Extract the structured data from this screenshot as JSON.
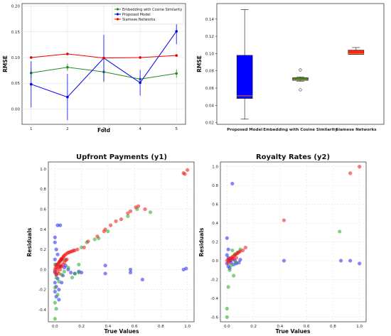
{
  "chart_data": [
    {
      "type": "line",
      "title": "",
      "xlabel": "Fold",
      "ylabel": "RMSE",
      "x": [
        1,
        2,
        3,
        4,
        5
      ],
      "xticks": [
        "1",
        "2",
        "3",
        "4",
        "5"
      ],
      "ylim": [
        -0.03,
        0.205
      ],
      "yticks": [
        "0.00",
        "0.05",
        "0.10",
        "0.15",
        "0.20"
      ],
      "grid": true,
      "legend_position": "top-right",
      "series": [
        {
          "name": "Embedding with Cosine Similarity",
          "color": "#228B22",
          "values": [
            0.07,
            0.081,
            0.072,
            0.058,
            0.069
          ],
          "err": [
            0.01,
            0.007,
            0.02,
            0.005,
            0.008
          ]
        },
        {
          "name": "Proposed Model",
          "color": "#0000ee",
          "values": [
            0.048,
            0.023,
            0.099,
            0.051,
            0.151
          ],
          "err": [
            0.045,
            0.045,
            0.045,
            0.025,
            0.025
          ]
        },
        {
          "name": "Siamese Networks",
          "color": "#ee0000",
          "values": [
            0.1,
            0.107,
            0.099,
            0.1,
            0.104
          ],
          "err": [
            0,
            0,
            0,
            0,
            0
          ]
        }
      ]
    },
    {
      "type": "box",
      "title": "",
      "xlabel": "",
      "ylabel": "RMSE",
      "categories": [
        "Proposed Model",
        "Embedding with Cosine Similarity",
        "Siamese Networks"
      ],
      "ylim": [
        0.018,
        0.158
      ],
      "yticks": [
        "0.02",
        "0.04",
        "0.06",
        "0.08",
        "0.10",
        "0.12",
        "0.14"
      ],
      "grid": false,
      "boxes": [
        {
          "name": "Proposed Model",
          "color": "#0000ff",
          "min": 0.024,
          "q1": 0.048,
          "median": 0.051,
          "q3": 0.098,
          "max": 0.151,
          "outliers": []
        },
        {
          "name": "Embedding with Cosine Similarity",
          "color": "#228B22",
          "min": 0.068,
          "q1": 0.069,
          "median": 0.07,
          "q3": 0.072,
          "max": 0.073,
          "outliers": [
            0.058,
            0.081
          ]
        },
        {
          "name": "Siamese Networks",
          "color": "#ff2020",
          "min": 0.099,
          "q1": 0.099,
          "median": 0.1,
          "q3": 0.104,
          "max": 0.107,
          "outliers": []
        }
      ]
    },
    {
      "type": "scatter",
      "title": "Upfront Payments (y1)",
      "xlabel": "True Values",
      "ylabel": "Residuals",
      "xlim": [
        -0.05,
        1.05
      ],
      "ylim": [
        -0.52,
        1.07
      ],
      "xticks": [
        "0.0",
        "0.2",
        "0.4",
        "0.6",
        "0.8",
        "1.0"
      ],
      "yticks": [
        "-0.4",
        "-0.2",
        "0.0",
        "0.2",
        "0.4",
        "0.6",
        "0.8",
        "1.0"
      ],
      "grid": true,
      "series": [
        {
          "name": "",
          "color": "#2222ee",
          "points": [
            [
              0.02,
              0.44
            ],
            [
              0.04,
              0.44
            ],
            [
              0.0,
              0.32
            ],
            [
              0.0,
              0.27
            ],
            [
              0.01,
              0.2
            ],
            [
              0.02,
              0.15
            ],
            [
              0.0,
              0.1
            ],
            [
              0.01,
              0.05
            ],
            [
              0.0,
              -0.02
            ],
            [
              0.01,
              -0.05
            ],
            [
              0.02,
              -0.09
            ],
            [
              0.0,
              -0.13
            ],
            [
              0.01,
              -0.17
            ],
            [
              0.0,
              -0.22
            ],
            [
              0.01,
              -0.27
            ],
            [
              0.03,
              -0.2
            ],
            [
              0.05,
              -0.13
            ],
            [
              0.06,
              -0.06
            ],
            [
              0.04,
              0.03
            ],
            [
              0.07,
              0.02
            ],
            [
              0.1,
              0.0
            ],
            [
              0.12,
              -0.03
            ],
            [
              0.15,
              -0.04
            ],
            [
              0.18,
              -0.02
            ],
            [
              0.2,
              -0.03
            ],
            [
              0.38,
              0.04
            ],
            [
              0.38,
              -0.04
            ],
            [
              0.57,
              0.0
            ],
            [
              0.57,
              -0.03
            ],
            [
              0.66,
              -0.1
            ],
            [
              0.97,
              0.0
            ],
            [
              0.99,
              0.01
            ],
            [
              0.05,
              0.1
            ],
            [
              0.08,
              0.04
            ],
            [
              0.03,
              -0.3
            ]
          ]
        },
        {
          "name": "",
          "color": "#22aa22",
          "points": [
            [
              0.0,
              -0.49
            ],
            [
              0.01,
              -0.39
            ],
            [
              0.0,
              -0.33
            ],
            [
              0.02,
              -0.25
            ],
            [
              0.0,
              -0.18
            ],
            [
              0.03,
              -0.12
            ],
            [
              0.01,
              -0.08
            ],
            [
              0.05,
              -0.05
            ],
            [
              0.07,
              -0.02
            ],
            [
              0.1,
              0.02
            ],
            [
              0.13,
              -0.08
            ],
            [
              0.15,
              -0.04
            ],
            [
              0.18,
              -0.03
            ],
            [
              0.18,
              0.05
            ],
            [
              0.2,
              0.22
            ],
            [
              0.24,
              0.27
            ],
            [
              0.3,
              0.3
            ],
            [
              0.33,
              0.31
            ],
            [
              0.4,
              0.38
            ],
            [
              0.55,
              0.53
            ],
            [
              0.62,
              0.6
            ],
            [
              0.72,
              0.57
            ],
            [
              0.0,
              0.05
            ],
            [
              0.04,
              0.08
            ],
            [
              0.08,
              0.1
            ]
          ]
        },
        {
          "name": "",
          "color": "#ee1111",
          "points": [
            [
              0.0,
              0.0
            ],
            [
              0.005,
              0.02
            ],
            [
              0.01,
              0.04
            ],
            [
              0.015,
              0.01
            ],
            [
              0.02,
              0.05
            ],
            [
              0.025,
              0.06
            ],
            [
              0.03,
              0.07
            ],
            [
              0.035,
              0.08
            ],
            [
              0.04,
              0.09
            ],
            [
              0.045,
              0.1
            ],
            [
              0.05,
              0.11
            ],
            [
              0.055,
              0.1
            ],
            [
              0.06,
              0.12
            ],
            [
              0.065,
              0.13
            ],
            [
              0.07,
              0.14
            ],
            [
              0.08,
              0.15
            ],
            [
              0.09,
              0.16
            ],
            [
              0.1,
              0.17
            ],
            [
              0.11,
              0.17
            ],
            [
              0.12,
              0.18
            ],
            [
              0.13,
              0.18
            ],
            [
              0.14,
              0.19
            ],
            [
              0.15,
              0.19
            ],
            [
              0.17,
              0.2
            ],
            [
              0.0,
              -0.03
            ],
            [
              0.01,
              -0.05
            ],
            [
              0.02,
              -0.02
            ],
            [
              0.03,
              -0.04
            ],
            [
              0.04,
              0.0
            ],
            [
              0.05,
              0.03
            ],
            [
              0.06,
              0.05
            ],
            [
              0.07,
              0.07
            ],
            [
              0.08,
              0.09
            ],
            [
              0.09,
              0.1
            ],
            [
              0.025,
              0.02
            ],
            [
              0.035,
              0.03
            ],
            [
              0.045,
              0.04
            ],
            [
              0.22,
              0.22
            ],
            [
              0.25,
              0.28
            ],
            [
              0.32,
              0.33
            ],
            [
              0.37,
              0.38
            ],
            [
              0.38,
              0.4
            ],
            [
              0.42,
              0.44
            ],
            [
              0.46,
              0.48
            ],
            [
              0.5,
              0.5
            ],
            [
              0.55,
              0.56
            ],
            [
              0.57,
              0.58
            ],
            [
              0.61,
              0.62
            ],
            [
              0.63,
              0.63
            ],
            [
              0.68,
              0.6
            ],
            [
              0.97,
              0.96
            ],
            [
              0.98,
              0.95
            ],
            [
              1.0,
              0.99
            ]
          ]
        }
      ]
    },
    {
      "type": "scatter",
      "title": "Royalty Rates (y2)",
      "xlabel": "True Values",
      "ylabel": "Residuals",
      "xlim": [
        -0.05,
        1.05
      ],
      "ylim": [
        -0.65,
        1.05
      ],
      "xticks": [
        "0.0",
        "0.2",
        "0.4",
        "0.6",
        "0.8",
        "1.0"
      ],
      "yticks": [
        "-0.6",
        "-0.4",
        "-0.2",
        "0.0",
        "0.2",
        "0.4",
        "0.6",
        "0.8",
        "1.0"
      ],
      "grid": true,
      "series": [
        {
          "name": "",
          "color": "#2222ee",
          "points": [
            [
              0.04,
              0.82
            ],
            [
              0.0,
              0.24
            ],
            [
              0.01,
              0.12
            ],
            [
              0.0,
              0.06
            ],
            [
              0.01,
              0.03
            ],
            [
              0.02,
              0.0
            ],
            [
              0.0,
              -0.03
            ],
            [
              0.01,
              -0.06
            ],
            [
              0.02,
              -0.08
            ],
            [
              0.03,
              -0.02
            ],
            [
              0.04,
              0.02
            ],
            [
              0.05,
              -0.04
            ],
            [
              0.06,
              0.0
            ],
            [
              0.07,
              -0.03
            ],
            [
              0.09,
              -0.02
            ],
            [
              0.1,
              0.01
            ],
            [
              0.43,
              0.0
            ],
            [
              0.86,
              0.0
            ],
            [
              0.93,
              0.0
            ],
            [
              1.0,
              -0.03
            ]
          ]
        },
        {
          "name": "",
          "color": "#22aa22",
          "points": [
            [
              0.0,
              -0.6
            ],
            [
              0.0,
              -0.51
            ],
            [
              0.01,
              -0.28
            ],
            [
              0.05,
              -0.16
            ],
            [
              0.02,
              -0.1
            ],
            [
              0.06,
              0.07
            ],
            [
              0.08,
              0.09
            ],
            [
              0.1,
              0.12
            ],
            [
              0.04,
              0.11
            ],
            [
              0.85,
              0.31
            ],
            [
              0.03,
              -0.05
            ],
            [
              0.07,
              -0.02
            ]
          ]
        },
        {
          "name": "",
          "color": "#ee1111",
          "points": [
            [
              0.0,
              0.0
            ],
            [
              0.01,
              0.01
            ],
            [
              0.02,
              0.02
            ],
            [
              0.03,
              0.03
            ],
            [
              0.04,
              0.04
            ],
            [
              0.05,
              0.05
            ],
            [
              0.06,
              0.06
            ],
            [
              0.07,
              0.07
            ],
            [
              0.08,
              0.08
            ],
            [
              0.09,
              0.09
            ],
            [
              0.1,
              0.1
            ],
            [
              0.12,
              0.11
            ],
            [
              0.14,
              0.14
            ],
            [
              0.01,
              -0.02
            ],
            [
              0.03,
              0.0
            ],
            [
              0.05,
              0.02
            ],
            [
              0.07,
              0.03
            ],
            [
              0.43,
              0.43
            ],
            [
              0.93,
              0.93
            ],
            [
              1.0,
              1.0
            ]
          ]
        }
      ]
    }
  ]
}
